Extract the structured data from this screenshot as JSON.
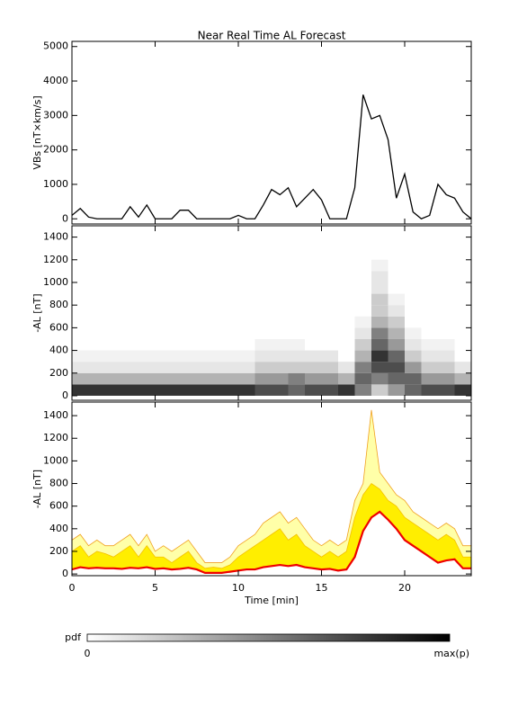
{
  "chart_data": [
    {
      "type": "line",
      "title": "Near Real Time AL Forecast",
      "ylabel": "VBs [nT×km/s]",
      "color": "#000000",
      "x": [
        0,
        0.5,
        1,
        1.5,
        2,
        2.5,
        3,
        3.5,
        4,
        4.5,
        5,
        5.5,
        6,
        6.5,
        7,
        7.5,
        8,
        8.5,
        9,
        9.5,
        10,
        10.5,
        11,
        11.5,
        12,
        12.5,
        13,
        13.5,
        14,
        14.5,
        15,
        15.5,
        16,
        16.5,
        17,
        17.5,
        18,
        18.5,
        19,
        19.5,
        20,
        20.5,
        21,
        21.5,
        22,
        22.5,
        23,
        23.5,
        24
      ],
      "values": [
        100,
        300,
        50,
        0,
        0,
        0,
        0,
        350,
        50,
        400,
        0,
        0,
        0,
        250,
        250,
        0,
        0,
        0,
        0,
        0,
        100,
        0,
        0,
        400,
        850,
        700,
        900,
        350,
        600,
        850,
        550,
        0,
        0,
        0,
        900,
        3600,
        2900,
        3000,
        2300,
        600,
        1300,
        200,
        0,
        100,
        1000,
        700,
        600,
        200,
        0
      ],
      "xlim": [
        0,
        24
      ],
      "xticks": [
        0,
        5,
        10,
        15,
        20
      ],
      "ylim": [
        -150,
        5150
      ],
      "yticks": [
        0,
        1000,
        2000,
        3000,
        4000,
        5000
      ]
    },
    {
      "type": "heatmap",
      "ylabel": "-AL [nT]",
      "colormap": [
        "#ffffff",
        "#000000"
      ],
      "xbins": [
        0,
        1,
        2,
        3,
        4,
        5,
        6,
        7,
        8,
        9,
        10,
        11,
        12,
        13,
        14,
        15,
        16,
        17,
        18,
        19,
        20,
        21,
        22,
        23,
        24
      ],
      "ybins": [
        0,
        100,
        200,
        300,
        400,
        500,
        600,
        700,
        800,
        900,
        1000,
        1100,
        1200
      ],
      "z": [
        [
          0.8,
          0.3,
          0.1,
          0.05,
          0,
          0,
          0,
          0,
          0,
          0,
          0,
          0
        ],
        [
          0.8,
          0.3,
          0.1,
          0.05,
          0,
          0,
          0,
          0,
          0,
          0,
          0,
          0
        ],
        [
          0.8,
          0.3,
          0.1,
          0.05,
          0,
          0,
          0,
          0,
          0,
          0,
          0,
          0
        ],
        [
          0.8,
          0.3,
          0.1,
          0.05,
          0,
          0,
          0,
          0,
          0,
          0,
          0,
          0
        ],
        [
          0.8,
          0.3,
          0.1,
          0.05,
          0,
          0,
          0,
          0,
          0,
          0,
          0,
          0
        ],
        [
          0.8,
          0.3,
          0.1,
          0.05,
          0,
          0,
          0,
          0,
          0,
          0,
          0,
          0
        ],
        [
          0.8,
          0.3,
          0.1,
          0.05,
          0,
          0,
          0,
          0,
          0,
          0,
          0,
          0
        ],
        [
          0.8,
          0.3,
          0.1,
          0.05,
          0,
          0,
          0,
          0,
          0,
          0,
          0,
          0
        ],
        [
          0.8,
          0.3,
          0.1,
          0.05,
          0,
          0,
          0,
          0,
          0,
          0,
          0,
          0
        ],
        [
          0.8,
          0.3,
          0.1,
          0.05,
          0,
          0,
          0,
          0,
          0,
          0,
          0,
          0
        ],
        [
          0.8,
          0.3,
          0.1,
          0.05,
          0,
          0,
          0,
          0,
          0,
          0,
          0,
          0
        ],
        [
          0.7,
          0.4,
          0.2,
          0.1,
          0.05,
          0,
          0,
          0,
          0,
          0,
          0,
          0
        ],
        [
          0.7,
          0.4,
          0.2,
          0.1,
          0.05,
          0,
          0,
          0,
          0,
          0,
          0,
          0
        ],
        [
          0.6,
          0.5,
          0.2,
          0.1,
          0.05,
          0,
          0,
          0,
          0,
          0,
          0,
          0
        ],
        [
          0.7,
          0.4,
          0.2,
          0.1,
          0,
          0,
          0,
          0,
          0,
          0,
          0,
          0
        ],
        [
          0.7,
          0.4,
          0.2,
          0.1,
          0,
          0,
          0,
          0,
          0,
          0,
          0,
          0
        ],
        [
          0.8,
          0.3,
          0.1,
          0,
          0,
          0,
          0,
          0,
          0,
          0,
          0,
          0
        ],
        [
          0.5,
          0.6,
          0.5,
          0.3,
          0.2,
          0.1,
          0.05,
          0,
          0,
          0,
          0,
          0
        ],
        [
          0.2,
          0.5,
          0.7,
          0.8,
          0.6,
          0.5,
          0.3,
          0.2,
          0.2,
          0.1,
          0.1,
          0.05
        ],
        [
          0.4,
          0.6,
          0.7,
          0.6,
          0.4,
          0.3,
          0.2,
          0.1,
          0.05,
          0,
          0,
          0
        ],
        [
          0.6,
          0.6,
          0.4,
          0.2,
          0.1,
          0.05,
          0,
          0,
          0,
          0,
          0,
          0
        ],
        [
          0.7,
          0.4,
          0.2,
          0.1,
          0.05,
          0,
          0,
          0,
          0,
          0,
          0,
          0
        ],
        [
          0.7,
          0.4,
          0.2,
          0.1,
          0.05,
          0,
          0,
          0,
          0,
          0,
          0,
          0
        ],
        [
          0.8,
          0.3,
          0.1,
          0,
          0,
          0,
          0,
          0,
          0,
          0,
          0,
          0
        ]
      ],
      "xlim": [
        0,
        24
      ],
      "xticks": [
        0,
        5,
        10,
        15,
        20
      ],
      "ylim": [
        -40,
        1500
      ],
      "yticks": [
        0,
        200,
        400,
        600,
        800,
        1000,
        1200,
        1400
      ],
      "colorbar": {
        "label": "pdf",
        "min_label": "0",
        "max_label": "max(p)"
      }
    },
    {
      "type": "band",
      "ylabel": "-AL [nT]",
      "xlabel": "Time [min]",
      "x": [
        0,
        0.5,
        1,
        1.5,
        2,
        2.5,
        3,
        3.5,
        4,
        4.5,
        5,
        5.5,
        6,
        6.5,
        7,
        7.5,
        8,
        8.5,
        9,
        9.5,
        10,
        10.5,
        11,
        11.5,
        12,
        12.5,
        13,
        13.5,
        14,
        14.5,
        15,
        15.5,
        16,
        16.5,
        17,
        17.5,
        18,
        18.5,
        19,
        19.5,
        20,
        20.5,
        21,
        21.5,
        22,
        22.5,
        23,
        23.5,
        24
      ],
      "bands": [
        {
          "color": "#ffffa8",
          "edge_color": "#f0a020",
          "upper": [
            300,
            350,
            250,
            300,
            250,
            250,
            300,
            350,
            250,
            350,
            200,
            250,
            200,
            250,
            300,
            200,
            100,
            100,
            100,
            150,
            250,
            300,
            350,
            450,
            500,
            550,
            450,
            500,
            400,
            300,
            250,
            300,
            250,
            300,
            650,
            800,
            1450,
            900,
            800,
            700,
            650,
            550,
            500,
            450,
            400,
            450,
            400,
            250,
            250
          ]
        },
        {
          "color": "#ffee00",
          "edge_color": "#f5c000",
          "upper": [
            200,
            250,
            150,
            200,
            180,
            150,
            200,
            250,
            150,
            250,
            150,
            150,
            100,
            150,
            200,
            100,
            50,
            60,
            50,
            80,
            150,
            200,
            250,
            300,
            350,
            400,
            300,
            350,
            250,
            200,
            150,
            200,
            150,
            200,
            500,
            700,
            800,
            750,
            650,
            600,
            500,
            450,
            400,
            350,
            300,
            350,
            300,
            150,
            150
          ]
        }
      ],
      "series": [
        {
          "color": "#ee0000",
          "values": [
            40,
            60,
            50,
            55,
            50,
            50,
            45,
            55,
            50,
            60,
            45,
            50,
            40,
            45,
            55,
            40,
            10,
            10,
            10,
            20,
            30,
            40,
            40,
            60,
            70,
            80,
            70,
            80,
            60,
            50,
            40,
            45,
            30,
            40,
            150,
            380,
            500,
            550,
            480,
            400,
            300,
            250,
            200,
            150,
            100,
            120,
            130,
            50,
            50
          ]
        }
      ],
      "xlim": [
        0,
        24
      ],
      "xticks": [
        0,
        5,
        10,
        15,
        20
      ],
      "ylim": [
        -15,
        1520
      ],
      "yticks": [
        0,
        200,
        400,
        600,
        800,
        1000,
        1200,
        1400
      ]
    }
  ]
}
